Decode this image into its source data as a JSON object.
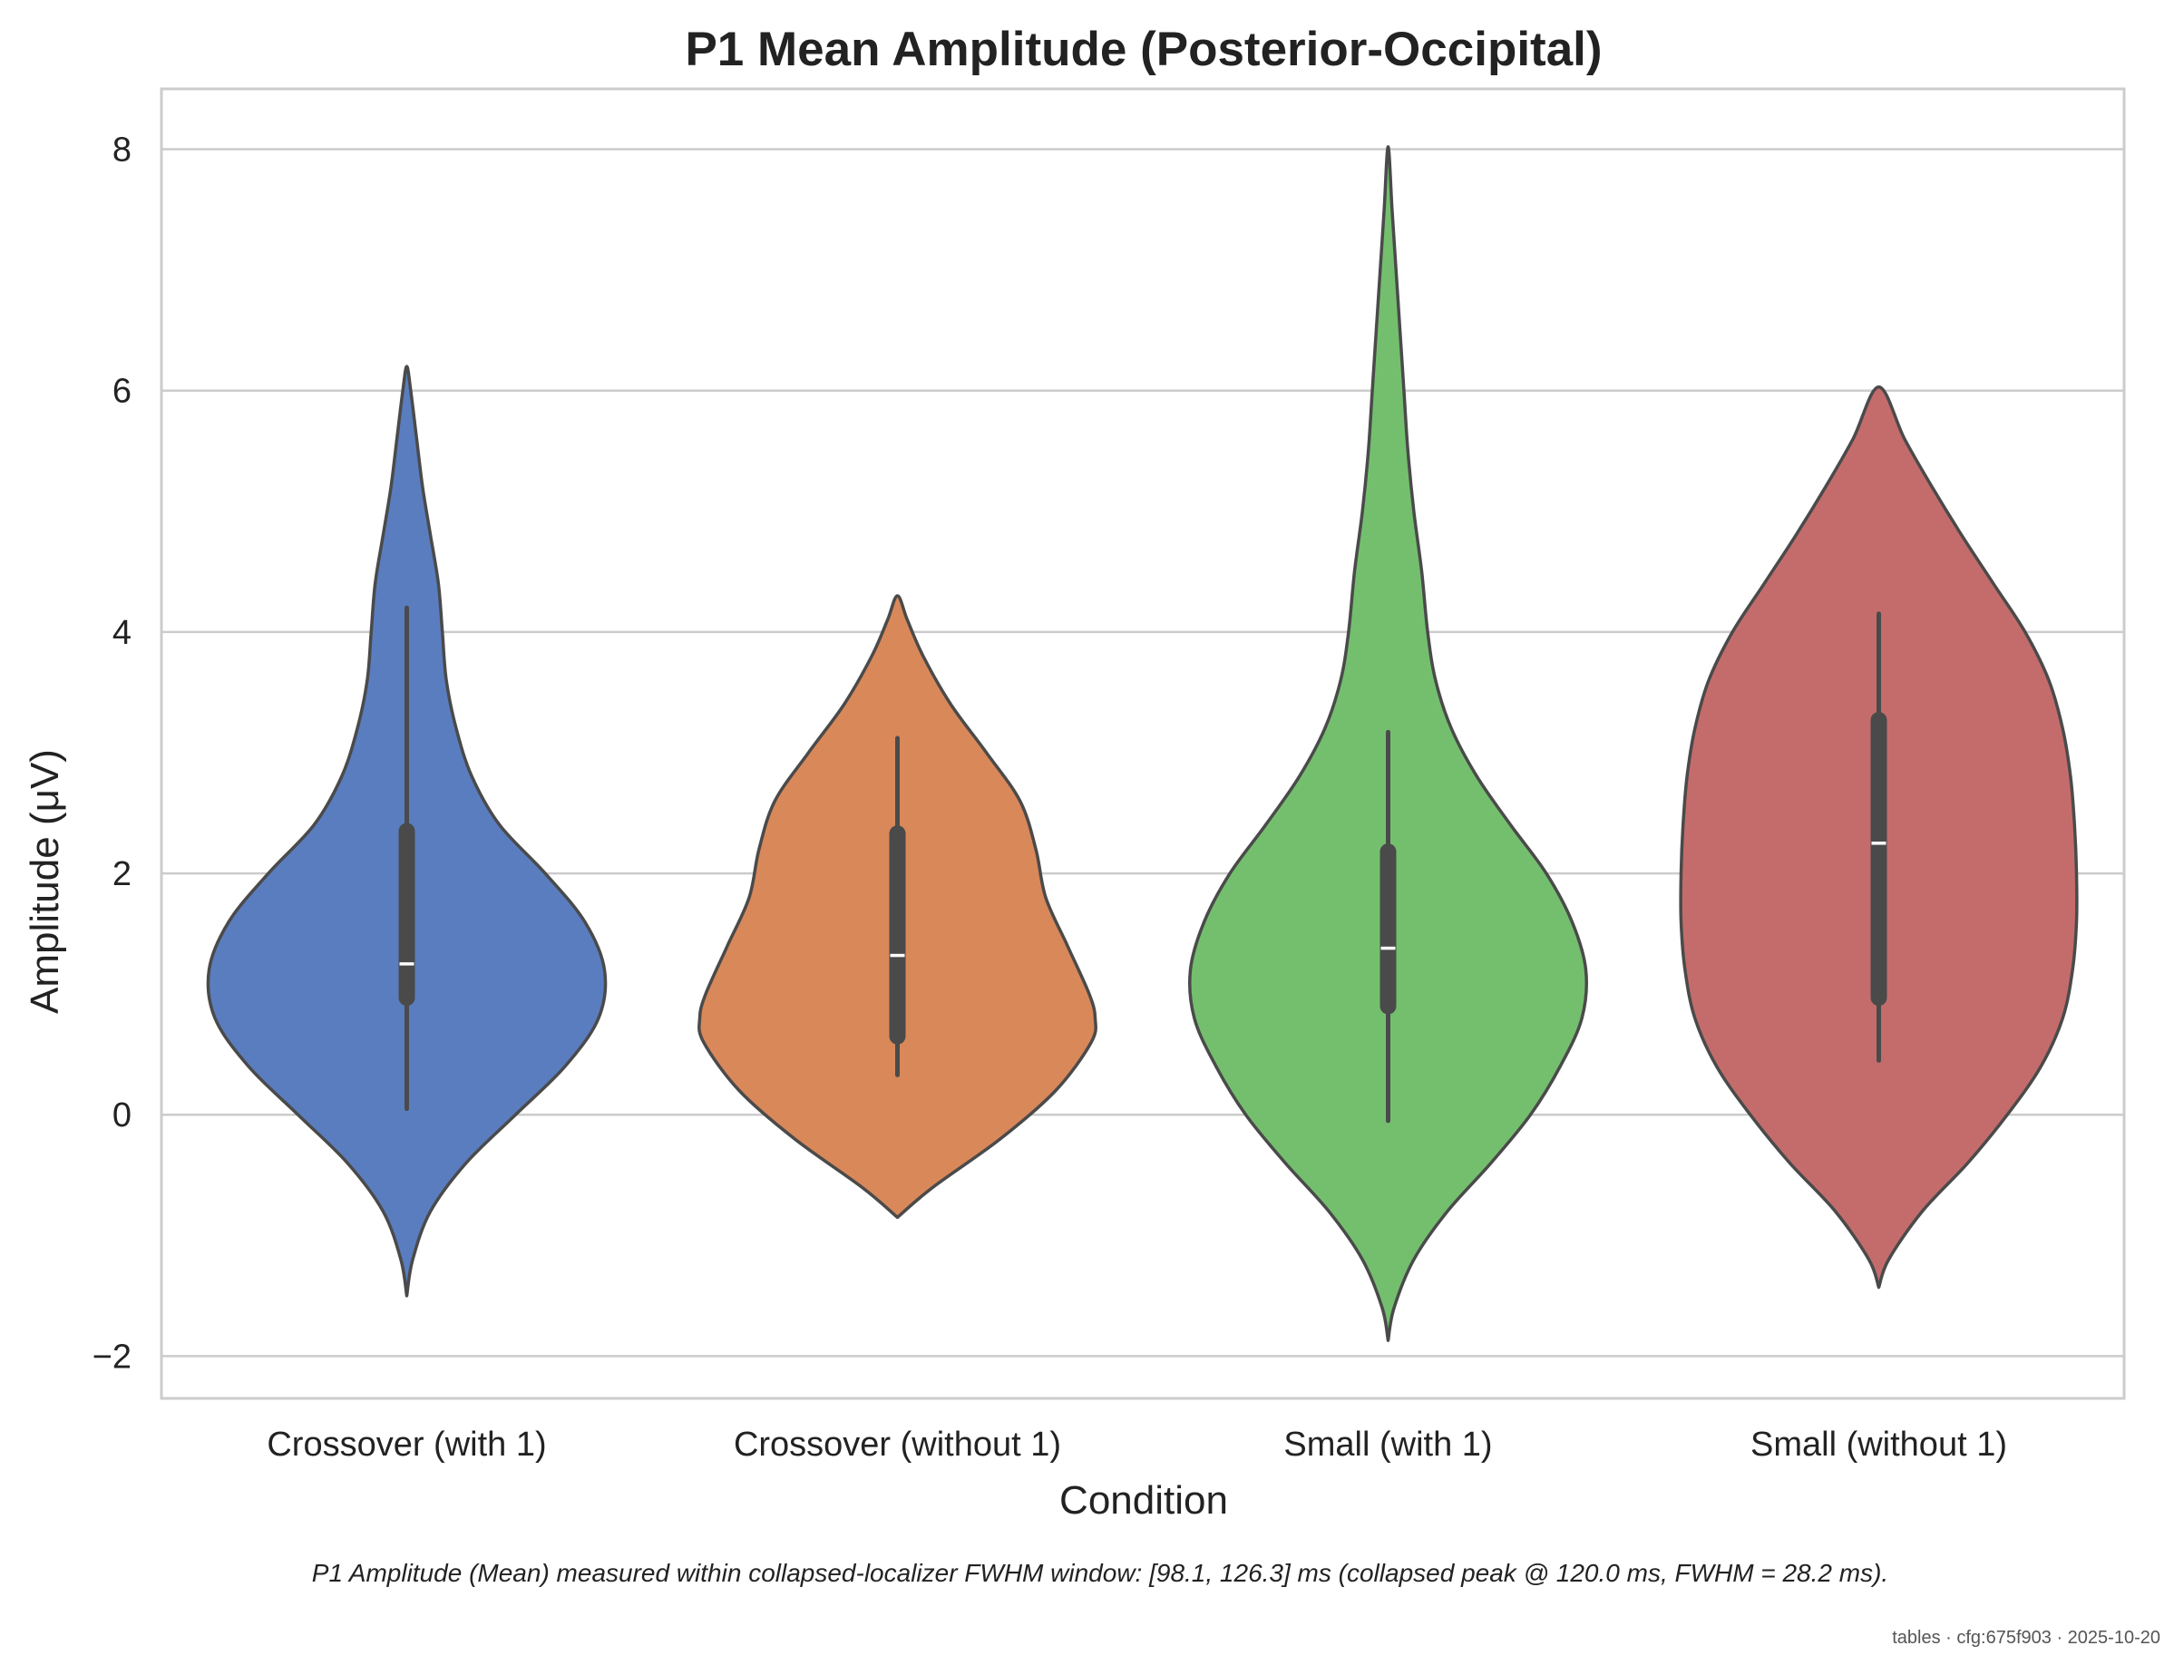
{
  "chart_data": {
    "type": "violin",
    "title": "P1 Mean Amplitude (Posterior-Occipital)",
    "xlabel": "Condition",
    "ylabel": "Amplitude (μV)",
    "ylim": [
      -2.35,
      8.5
    ],
    "yticks": [
      -2,
      0,
      2,
      4,
      6,
      8
    ],
    "ytick_labels": [
      "−2",
      "0",
      "2",
      "4",
      "6",
      "8"
    ],
    "grid": "horizontal",
    "categories": [
      "Crossover (with 1)",
      "Crossover (without 1)",
      "Small (with 1)",
      "Small (without 1)"
    ],
    "series": [
      {
        "color": "#5a7dbf",
        "min": -1.5,
        "max": 6.2,
        "q1": 0.97,
        "median": 1.25,
        "q3": 2.35,
        "whisker_low": 0.05,
        "whisker_high": 4.2,
        "profile": [
          [
            -1.5,
            0
          ],
          [
            -1.2,
            0.03
          ],
          [
            -0.8,
            0.12
          ],
          [
            -0.4,
            0.3
          ],
          [
            0.0,
            0.55
          ],
          [
            0.4,
            0.8
          ],
          [
            0.8,
            0.97
          ],
          [
            1.2,
            1.0
          ],
          [
            1.6,
            0.9
          ],
          [
            2.0,
            0.7
          ],
          [
            2.4,
            0.47
          ],
          [
            2.8,
            0.33
          ],
          [
            3.2,
            0.25
          ],
          [
            3.6,
            0.2
          ],
          [
            4.0,
            0.18
          ],
          [
            4.4,
            0.16
          ],
          [
            4.8,
            0.12
          ],
          [
            5.2,
            0.08
          ],
          [
            5.6,
            0.05
          ],
          [
            6.0,
            0.02
          ],
          [
            6.2,
            0
          ]
        ]
      },
      {
        "color": "#d9885a",
        "min": -0.85,
        "max": 4.3,
        "q1": 0.65,
        "median": 1.32,
        "q3": 2.33,
        "whisker_low": 0.33,
        "whisker_high": 3.12,
        "profile": [
          [
            -0.85,
            0
          ],
          [
            -0.6,
            0.18
          ],
          [
            -0.2,
            0.52
          ],
          [
            0.2,
            0.8
          ],
          [
            0.6,
            0.98
          ],
          [
            0.8,
            1.0
          ],
          [
            1.0,
            0.97
          ],
          [
            1.4,
            0.86
          ],
          [
            1.8,
            0.75
          ],
          [
            2.2,
            0.7
          ],
          [
            2.6,
            0.62
          ],
          [
            3.0,
            0.45
          ],
          [
            3.4,
            0.27
          ],
          [
            3.8,
            0.13
          ],
          [
            4.1,
            0.05
          ],
          [
            4.3,
            0
          ]
        ]
      },
      {
        "color": "#74bf6e",
        "min": -1.87,
        "max": 8.02,
        "q1": 0.9,
        "median": 1.38,
        "q3": 2.18,
        "whisker_low": -0.05,
        "whisker_high": 3.17,
        "profile": [
          [
            -1.87,
            0
          ],
          [
            -1.6,
            0.03
          ],
          [
            -1.2,
            0.13
          ],
          [
            -0.8,
            0.3
          ],
          [
            -0.4,
            0.52
          ],
          [
            0.0,
            0.72
          ],
          [
            0.4,
            0.87
          ],
          [
            0.8,
            0.98
          ],
          [
            1.2,
            1.0
          ],
          [
            1.6,
            0.93
          ],
          [
            2.0,
            0.8
          ],
          [
            2.4,
            0.62
          ],
          [
            2.8,
            0.45
          ],
          [
            3.2,
            0.32
          ],
          [
            3.6,
            0.24
          ],
          [
            4.0,
            0.2
          ],
          [
            4.5,
            0.17
          ],
          [
            5.0,
            0.13
          ],
          [
            5.5,
            0.1
          ],
          [
            6.0,
            0.08
          ],
          [
            6.5,
            0.06
          ],
          [
            7.0,
            0.04
          ],
          [
            7.5,
            0.02
          ],
          [
            8.02,
            0
          ]
        ]
      },
      {
        "color": "#c46c6c",
        "min": -1.43,
        "max": 6.03,
        "q1": 0.97,
        "median": 2.25,
        "q3": 3.27,
        "whisker_low": 0.45,
        "whisker_high": 4.15,
        "profile": [
          [
            -1.43,
            0
          ],
          [
            -1.2,
            0.05
          ],
          [
            -0.8,
            0.22
          ],
          [
            -0.4,
            0.45
          ],
          [
            0.0,
            0.65
          ],
          [
            0.4,
            0.82
          ],
          [
            0.8,
            0.93
          ],
          [
            1.2,
            0.98
          ],
          [
            1.6,
            1.0
          ],
          [
            2.0,
            1.0
          ],
          [
            2.4,
            0.99
          ],
          [
            2.8,
            0.97
          ],
          [
            3.2,
            0.93
          ],
          [
            3.6,
            0.86
          ],
          [
            4.0,
            0.74
          ],
          [
            4.4,
            0.58
          ],
          [
            4.8,
            0.42
          ],
          [
            5.2,
            0.27
          ],
          [
            5.6,
            0.13
          ],
          [
            6.03,
            0
          ]
        ]
      }
    ]
  },
  "caption": "P1 Amplitude (Mean) measured within collapsed-localizer FWHM window: [98.1, 126.3] ms (collapsed peak @ 120.0 ms, FWHM = 28.2 ms).",
  "footer": "tables · cfg:675f903 · 2025-10-20"
}
